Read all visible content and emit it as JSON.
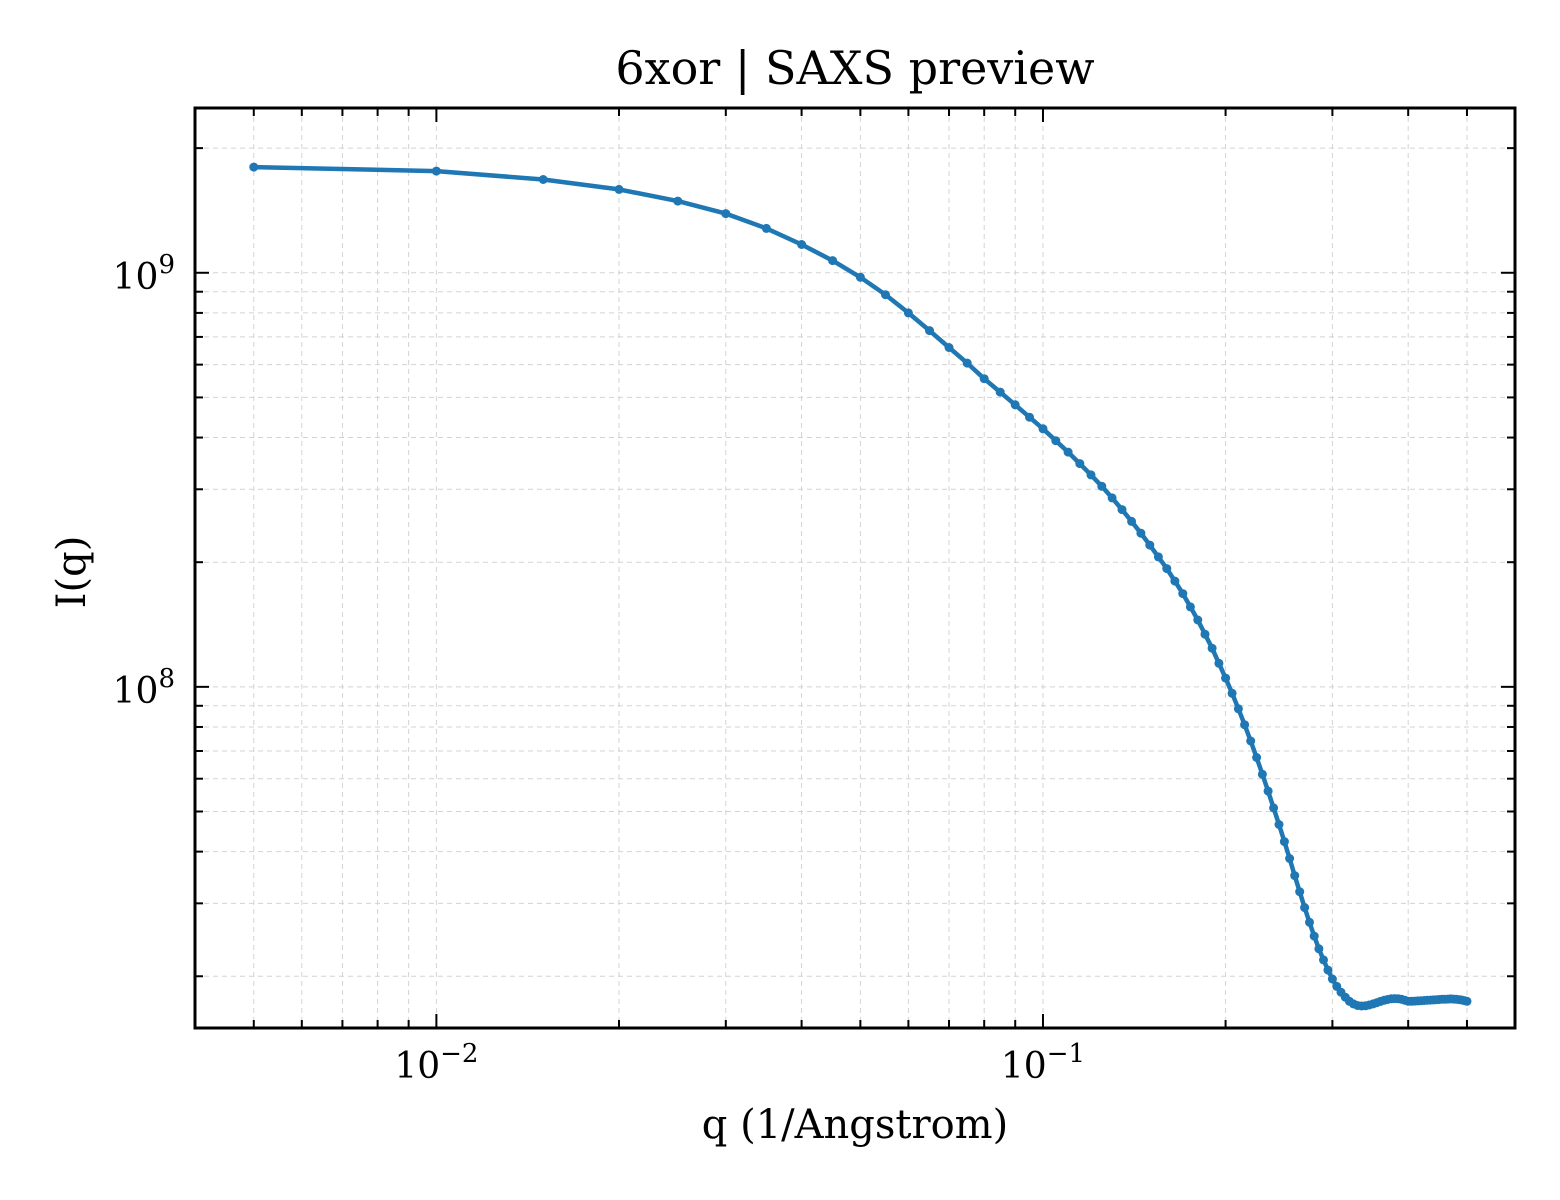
{
  "chart_data": {
    "type": "line",
    "title": "6xor | SAXS preview",
    "xlabel": "q (1/Angstrom)",
    "ylabel": "I(q)",
    "xscale": "log",
    "yscale": "log",
    "xlim": [
      0.004,
      0.6
    ],
    "ylim": [
      15000000,
      2500000000
    ],
    "x_ticks": [
      {
        "base": "10",
        "exp": "−2",
        "value": 0.01
      },
      {
        "base": "10",
        "exp": "−1",
        "value": 0.1
      }
    ],
    "y_ticks": [
      {
        "base": "10",
        "exp": "8",
        "value": 100000000
      },
      {
        "base": "10",
        "exp": "9",
        "value": 1000000000
      }
    ],
    "grid": true,
    "line_color": "#1f77b4",
    "series": [
      {
        "x": [
          0.005,
          0.01,
          0.015,
          0.02,
          0.025,
          0.03,
          0.035,
          0.04,
          0.045,
          0.05,
          0.055,
          0.06,
          0.065,
          0.07,
          0.075,
          0.08,
          0.085,
          0.09,
          0.095,
          0.1,
          0.105,
          0.11,
          0.115,
          0.12,
          0.125,
          0.13,
          0.135,
          0.14,
          0.145,
          0.15,
          0.155,
          0.16,
          0.165,
          0.17,
          0.175,
          0.18,
          0.185,
          0.19,
          0.195,
          0.2,
          0.205,
          0.21,
          0.215,
          0.22,
          0.225,
          0.23,
          0.235,
          0.24,
          0.245,
          0.25,
          0.255,
          0.26,
          0.265,
          0.27,
          0.275,
          0.28,
          0.285,
          0.29,
          0.295,
          0.3,
          0.305,
          0.31,
          0.315,
          0.32,
          0.325,
          0.33,
          0.335,
          0.34,
          0.345,
          0.35,
          0.355,
          0.36,
          0.365,
          0.37,
          0.375,
          0.38,
          0.385,
          0.39,
          0.395,
          0.4,
          0.405,
          0.41,
          0.415,
          0.42,
          0.425,
          0.43,
          0.435,
          0.44,
          0.445,
          0.45,
          0.455,
          0.46,
          0.465,
          0.47,
          0.475,
          0.48,
          0.485,
          0.49,
          0.495,
          0.5
        ],
        "y": [
          1800000000,
          1760000000,
          1680000000,
          1590000000,
          1490000000,
          1390000000,
          1280000000,
          1170000000,
          1070000000,
          975000000,
          885000000,
          800000000,
          725000000,
          660000000,
          605000000,
          555000000,
          515000000,
          480000000,
          448000000,
          420000000,
          393000000,
          369000000,
          346000000,
          325000000,
          305000000,
          286000000,
          268000000,
          251000000,
          235000000,
          220000000,
          206000000,
          193000000,
          180000000,
          168000000,
          156000000,
          145000000,
          134000000,
          124000000,
          114000000,
          105000000,
          96500000,
          88500000,
          81000000,
          74000000,
          67500000,
          61500000,
          56000000,
          51000000,
          46500000,
          42300000,
          38500000,
          35000000,
          32000000,
          29300000,
          27000000,
          25000000,
          23300000,
          21900000,
          20700000,
          19700000,
          18900000,
          18300000,
          17800000,
          17400000,
          17150000,
          17000000,
          16950000,
          16970000,
          17050000,
          17150000,
          17270000,
          17390000,
          17500000,
          17580000,
          17640000,
          17660000,
          17650000,
          17600000,
          17500000,
          17400000,
          17400000,
          17420000,
          17440000,
          17460000,
          17480000,
          17500000,
          17520000,
          17540000,
          17560000,
          17580000,
          17600000,
          17610000,
          17620000,
          17630000,
          17620000,
          17600000,
          17570000,
          17530000,
          17470000,
          17400000
        ]
      }
    ]
  }
}
